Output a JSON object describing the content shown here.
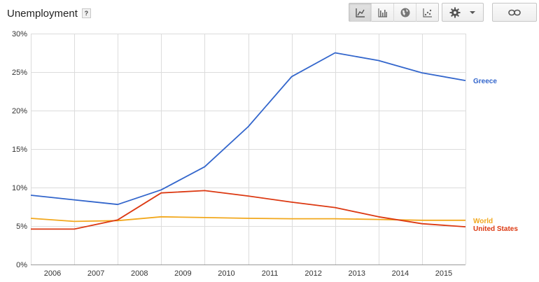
{
  "header": {
    "title": "Unemployment",
    "help_label": "?"
  },
  "toolbar": {
    "chart_types": [
      {
        "icon": "line-chart-icon",
        "active": true
      },
      {
        "icon": "bar-chart-icon",
        "active": false
      },
      {
        "icon": "globe-map-icon",
        "active": false
      },
      {
        "icon": "scatter-chart-icon",
        "active": false
      }
    ],
    "settings_icon": "gear-icon",
    "dropdown_icon": "caret-down-icon",
    "link_icon": "link-icon"
  },
  "chart_data": {
    "type": "line",
    "x": [
      2005.5,
      2006.5,
      2007.5,
      2008.5,
      2009.5,
      2010.5,
      2011.5,
      2012.5,
      2013.5,
      2014.5,
      2015.5
    ],
    "xtick_labels": [
      "2006",
      "2007",
      "2008",
      "2009",
      "2010",
      "2011",
      "2012",
      "2013",
      "2014",
      "2015"
    ],
    "xlim": [
      2005.5,
      2015.5
    ],
    "ylim": [
      0,
      30
    ],
    "yticks": [
      0,
      5,
      10,
      15,
      20,
      25,
      30
    ],
    "ytick_labels": [
      "0%",
      "5%",
      "10%",
      "15%",
      "20%",
      "25%",
      "30%"
    ],
    "grid": true,
    "series": [
      {
        "name": "Greece",
        "color": "#3366cc",
        "values": [
          9.0,
          8.4,
          7.8,
          9.7,
          12.7,
          17.9,
          24.4,
          27.5,
          26.5,
          24.9,
          23.9
        ]
      },
      {
        "name": "World",
        "color": "#f2a81d",
        "values": [
          6.0,
          5.6,
          5.7,
          6.2,
          6.1,
          6.0,
          5.95,
          5.95,
          5.85,
          5.75,
          5.75
        ]
      },
      {
        "name": "United States",
        "color": "#dc3912",
        "values": [
          4.6,
          4.6,
          5.8,
          9.3,
          9.6,
          8.9,
          8.1,
          7.4,
          6.2,
          5.3,
          4.9
        ]
      }
    ]
  }
}
